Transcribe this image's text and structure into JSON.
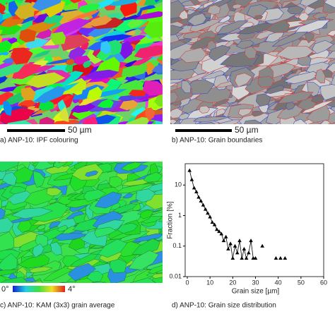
{
  "panels": [
    {
      "caption": "a) ANP-10: IPF colouring",
      "scale_bar": "50 µm"
    },
    {
      "caption": "b) ANP-10: Grain boundaries",
      "scale_bar": "50 µm"
    },
    {
      "caption": "c) ANP-10: KAM (3x3) grain average",
      "colorbar": [
        "0°",
        "4°"
      ]
    },
    {
      "caption": "d) ANP-10: Grain size distribution"
    }
  ],
  "chart_data": {
    "type": "line",
    "xlabel": "Grain size [µm]",
    "ylabel": "Fraction [%]",
    "x": [
      1,
      2,
      3,
      4,
      5,
      6,
      7,
      8,
      9,
      10,
      11,
      12,
      13,
      14,
      15,
      16,
      17,
      18,
      19,
      20,
      21,
      22,
      23,
      24,
      25,
      26,
      27,
      28,
      29,
      30,
      31,
      33,
      34,
      39,
      40,
      41,
      42,
      43
    ],
    "values": [
      30,
      15,
      8,
      6,
      4,
      3,
      2.2,
      1.6,
      1.2,
      0.9,
      0.6,
      0.5,
      0.35,
      0.3,
      0.25,
      0.15,
      0.2,
      0.08,
      0.12,
      0.04,
      0.1,
      0.06,
      0.15,
      0.04,
      0.08,
      0.04,
      0.06,
      0.15,
      0.04,
      0.04,
      null,
      0.1,
      null,
      0.04,
      null,
      0.04,
      null,
      0.04
    ],
    "color": "#000000",
    "marker": "triangle",
    "ylog": true,
    "xlim": [
      0,
      60
    ],
    "ylim": [
      0.01,
      50
    ],
    "xticks": [
      0,
      10,
      20,
      30,
      40,
      50,
      60
    ],
    "yticks": [
      0.01,
      0.1,
      1,
      10
    ]
  }
}
